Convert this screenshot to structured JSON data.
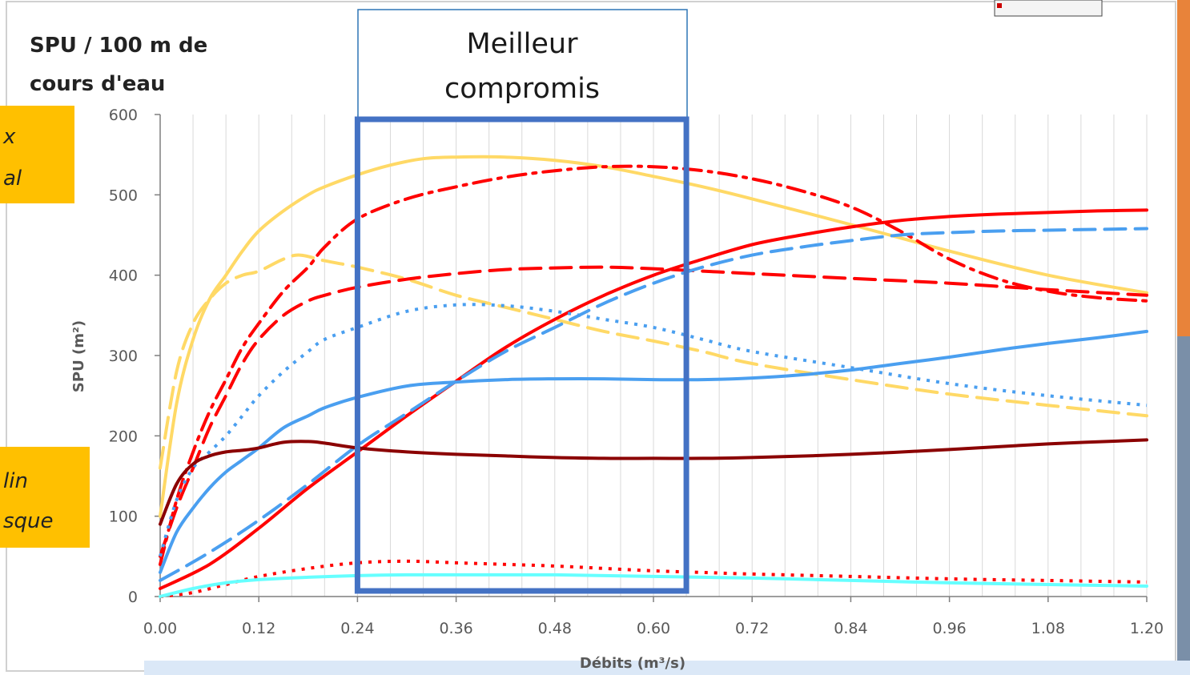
{
  "chart_data": {
    "type": "line",
    "title_lines": [
      "SPU / 100 m de",
      "cours d'eau"
    ],
    "xlabel": "Débits (m³/s)",
    "ylabel": "SPU (m²)",
    "xlim": [
      0,
      1.2
    ],
    "ylim": [
      0,
      600
    ],
    "x_ticks": [
      "0.00",
      "0.12",
      "0.24",
      "0.36",
      "0.48",
      "0.60",
      "0.72",
      "0.84",
      "0.96",
      "1.08",
      "1.20"
    ],
    "y_ticks": [
      "0",
      "100",
      "200",
      "300",
      "400",
      "500",
      "600"
    ],
    "grid": "vertical",
    "annotation_box": {
      "lines": [
        "Meilleur",
        "compromis"
      ],
      "x_range": [
        0.24,
        0.64
      ]
    },
    "side_notes": [
      {
        "lines": [
          "x",
          "al"
        ]
      },
      {
        "lines": [
          "lin",
          "sque"
        ]
      }
    ],
    "series": [
      {
        "color": "#FFD966",
        "dash": "solid",
        "x": [
          0,
          0.02,
          0.04,
          0.06,
          0.08,
          0.1,
          0.12,
          0.15,
          0.18,
          0.2,
          0.24,
          0.28,
          0.32,
          0.36,
          0.42,
          0.48,
          0.54,
          0.6,
          0.66,
          0.72,
          0.84,
          0.96,
          1.08,
          1.2
        ],
        "y": [
          100,
          240,
          320,
          370,
          400,
          430,
          455,
          480,
          500,
          510,
          525,
          537,
          545,
          547,
          547,
          543,
          535,
          523,
          510,
          495,
          463,
          430,
          400,
          378
        ]
      },
      {
        "color": "#FFD966",
        "dash": "long",
        "x": [
          0,
          0.02,
          0.04,
          0.06,
          0.08,
          0.1,
          0.12,
          0.15,
          0.17,
          0.2,
          0.24,
          0.3,
          0.36,
          0.42,
          0.48,
          0.54,
          0.6,
          0.66,
          0.72,
          0.84,
          0.96,
          1.08,
          1.2
        ],
        "y": [
          160,
          280,
          340,
          370,
          390,
          400,
          405,
          420,
          425,
          418,
          410,
          395,
          375,
          360,
          345,
          330,
          318,
          305,
          290,
          270,
          252,
          238,
          225
        ]
      },
      {
        "color": "#FF0000",
        "dash": "dashdot",
        "x": [
          0,
          0.02,
          0.04,
          0.06,
          0.08,
          0.1,
          0.12,
          0.15,
          0.18,
          0.2,
          0.24,
          0.3,
          0.36,
          0.42,
          0.48,
          0.54,
          0.6,
          0.66,
          0.72,
          0.78,
          0.84,
          0.9,
          0.96,
          1.02,
          1.08,
          1.14,
          1.2
        ],
        "y": [
          40,
          120,
          180,
          230,
          270,
          310,
          340,
          380,
          410,
          435,
          470,
          495,
          510,
          522,
          530,
          535,
          535,
          530,
          520,
          505,
          485,
          455,
          420,
          395,
          380,
          372,
          368
        ]
      },
      {
        "color": "#FF0000",
        "dash": "long",
        "x": [
          0,
          0.02,
          0.04,
          0.06,
          0.08,
          0.1,
          0.12,
          0.15,
          0.18,
          0.2,
          0.24,
          0.3,
          0.36,
          0.42,
          0.48,
          0.54,
          0.6,
          0.66,
          0.72,
          0.84,
          0.96,
          1.08,
          1.2
        ],
        "y": [
          50,
          110,
          160,
          210,
          250,
          290,
          320,
          350,
          368,
          375,
          385,
          395,
          402,
          407,
          409,
          410,
          408,
          405,
          402,
          396,
          390,
          382,
          375
        ]
      },
      {
        "color": "#FF0000",
        "dash": "solid",
        "x": [
          0,
          0.06,
          0.12,
          0.18,
          0.24,
          0.3,
          0.36,
          0.42,
          0.48,
          0.54,
          0.6,
          0.66,
          0.72,
          0.78,
          0.84,
          0.9,
          0.96,
          1.02,
          1.08,
          1.14,
          1.2
        ],
        "y": [
          10,
          40,
          85,
          135,
          180,
          225,
          268,
          310,
          345,
          375,
          400,
          420,
          438,
          450,
          460,
          468,
          473,
          476,
          478,
          480,
          481
        ]
      },
      {
        "color": "#FF0000",
        "dash": "dotted",
        "x": [
          0,
          0.04,
          0.08,
          0.12,
          0.18,
          0.24,
          0.3,
          0.36,
          0.42,
          0.48,
          0.54,
          0.6,
          0.66,
          0.72,
          0.84,
          0.96,
          1.08,
          1.2
        ],
        "y": [
          0,
          5,
          15,
          25,
          35,
          42,
          44,
          42,
          40,
          38,
          35,
          32,
          30,
          28,
          25,
          22,
          20,
          18
        ]
      },
      {
        "color": "#4A9FF0",
        "dash": "long",
        "x": [
          0,
          0.06,
          0.12,
          0.18,
          0.24,
          0.3,
          0.36,
          0.42,
          0.48,
          0.54,
          0.6,
          0.66,
          0.72,
          0.78,
          0.84,
          0.9,
          0.96,
          1.02,
          1.08,
          1.14,
          1.2
        ],
        "y": [
          20,
          55,
          95,
          140,
          188,
          228,
          268,
          305,
          335,
          365,
          390,
          410,
          425,
          435,
          443,
          450,
          453,
          455,
          456,
          457,
          458
        ]
      },
      {
        "color": "#4A9FF0",
        "dash": "dotted",
        "x": [
          0,
          0.02,
          0.04,
          0.06,
          0.08,
          0.1,
          0.12,
          0.15,
          0.18,
          0.2,
          0.24,
          0.3,
          0.36,
          0.42,
          0.48,
          0.54,
          0.6,
          0.66,
          0.72,
          0.84,
          0.96,
          1.08,
          1.2
        ],
        "y": [
          50,
          120,
          160,
          180,
          200,
          225,
          250,
          280,
          305,
          320,
          335,
          355,
          363,
          362,
          355,
          345,
          335,
          320,
          305,
          285,
          265,
          250,
          238
        ]
      },
      {
        "color": "#4A9FF0",
        "dash": "solid",
        "x": [
          0,
          0.02,
          0.04,
          0.06,
          0.08,
          0.1,
          0.12,
          0.15,
          0.18,
          0.2,
          0.24,
          0.3,
          0.36,
          0.42,
          0.48,
          0.54,
          0.6,
          0.66,
          0.72,
          0.78,
          0.84,
          0.9,
          0.96,
          1.02,
          1.08,
          1.14,
          1.2
        ],
        "y": [
          30,
          80,
          110,
          135,
          155,
          170,
          185,
          210,
          225,
          235,
          248,
          262,
          267,
          270,
          271,
          271,
          270,
          270,
          272,
          276,
          282,
          290,
          298,
          307,
          315,
          322,
          330
        ]
      },
      {
        "color": "#8B0000",
        "dash": "solid",
        "x": [
          0,
          0.02,
          0.04,
          0.06,
          0.08,
          0.1,
          0.12,
          0.15,
          0.18,
          0.2,
          0.24,
          0.3,
          0.36,
          0.42,
          0.48,
          0.54,
          0.6,
          0.66,
          0.72,
          0.84,
          0.96,
          1.08,
          1.2
        ],
        "y": [
          90,
          140,
          165,
          175,
          180,
          182,
          185,
          192,
          193,
          191,
          185,
          180,
          177,
          175,
          173,
          172,
          172,
          172,
          173,
          177,
          183,
          190,
          195
        ]
      },
      {
        "color": "#66FFFF",
        "dash": "solid",
        "x": [
          0,
          0.04,
          0.08,
          0.12,
          0.18,
          0.24,
          0.3,
          0.36,
          0.42,
          0.48,
          0.54,
          0.6,
          0.66,
          0.72,
          0.84,
          0.96,
          1.08,
          1.2
        ],
        "y": [
          0,
          10,
          17,
          21,
          24,
          26,
          27,
          27,
          27,
          27,
          26,
          25,
          24,
          23,
          20,
          17,
          15,
          13
        ]
      }
    ]
  }
}
